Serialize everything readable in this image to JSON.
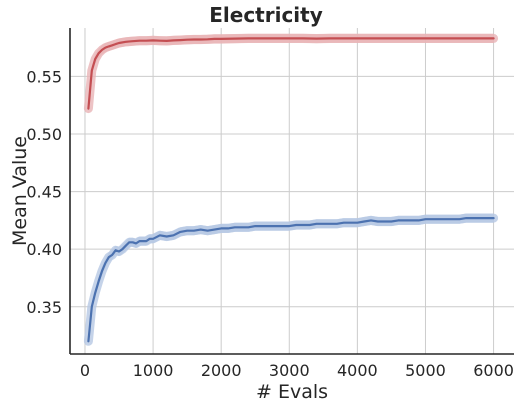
{
  "chart_data": {
    "type": "line",
    "title": "Electricity",
    "xlabel": "# Evals",
    "ylabel": "Mean Value",
    "xlim": [
      -220,
      6300
    ],
    "ylim": [
      0.309,
      0.592
    ],
    "xticks": [
      0,
      1000,
      2000,
      3000,
      4000,
      5000,
      6000
    ],
    "xtick_labels": [
      "0",
      "1000",
      "2000",
      "3000",
      "4000",
      "5000",
      "6000"
    ],
    "yticks": [
      0.35,
      0.4,
      0.45,
      0.5,
      0.55
    ],
    "ytick_labels": [
      "0.35",
      "0.40",
      "0.45",
      "0.50",
      "0.55"
    ],
    "grid": true,
    "series": [
      {
        "color": "#c44e52",
        "band_color": "#e8b4b6",
        "x": [
          50,
          100,
          150,
          200,
          250,
          300,
          350,
          400,
          450,
          500,
          600,
          700,
          800,
          900,
          1000,
          1100,
          1200,
          1300,
          1400,
          1500,
          1600,
          1700,
          1800,
          1900,
          2000,
          2200,
          2400,
          2600,
          2800,
          3000,
          3200,
          3400,
          3600,
          3800,
          4000,
          4200,
          4400,
          4600,
          4800,
          5000,
          5200,
          5400,
          5600,
          5800,
          6000
        ],
        "y": [
          0.522,
          0.555,
          0.565,
          0.57,
          0.573,
          0.575,
          0.576,
          0.577,
          0.578,
          0.579,
          0.58,
          0.5805,
          0.581,
          0.581,
          0.5812,
          0.581,
          0.5808,
          0.5812,
          0.5815,
          0.5818,
          0.582,
          0.582,
          0.5822,
          0.5825,
          0.5825,
          0.5828,
          0.583,
          0.583,
          0.583,
          0.583,
          0.583,
          0.5828,
          0.583,
          0.583,
          0.583,
          0.583,
          0.583,
          0.583,
          0.583,
          0.583,
          0.583,
          0.583,
          0.583,
          0.583,
          0.583
        ],
        "band": 0.004
      },
      {
        "color": "#4c72b0",
        "band_color": "#b7c8e3",
        "x": [
          50,
          100,
          150,
          200,
          250,
          300,
          350,
          400,
          450,
          500,
          550,
          600,
          650,
          700,
          750,
          800,
          850,
          900,
          950,
          1000,
          1100,
          1200,
          1300,
          1400,
          1500,
          1600,
          1700,
          1800,
          1900,
          2000,
          2100,
          2200,
          2300,
          2400,
          2500,
          2600,
          2700,
          2800,
          2900,
          3000,
          3100,
          3200,
          3300,
          3400,
          3500,
          3600,
          3700,
          3800,
          3900,
          4000,
          4100,
          4200,
          4300,
          4400,
          4500,
          4600,
          4700,
          4800,
          4900,
          5000,
          5100,
          5200,
          5300,
          5400,
          5500,
          5600,
          5700,
          5800,
          5900,
          6000
        ],
        "y": [
          0.32,
          0.35,
          0.362,
          0.372,
          0.381,
          0.388,
          0.393,
          0.395,
          0.399,
          0.398,
          0.4,
          0.403,
          0.406,
          0.406,
          0.405,
          0.407,
          0.407,
          0.407,
          0.409,
          0.409,
          0.412,
          0.411,
          0.412,
          0.415,
          0.416,
          0.416,
          0.417,
          0.416,
          0.417,
          0.418,
          0.418,
          0.419,
          0.419,
          0.419,
          0.42,
          0.42,
          0.42,
          0.42,
          0.42,
          0.42,
          0.421,
          0.421,
          0.421,
          0.422,
          0.422,
          0.422,
          0.422,
          0.423,
          0.423,
          0.423,
          0.424,
          0.425,
          0.424,
          0.424,
          0.424,
          0.425,
          0.425,
          0.425,
          0.425,
          0.426,
          0.426,
          0.426,
          0.426,
          0.426,
          0.426,
          0.427,
          0.427,
          0.427,
          0.427,
          0.427
        ],
        "band": 0.004
      }
    ]
  }
}
